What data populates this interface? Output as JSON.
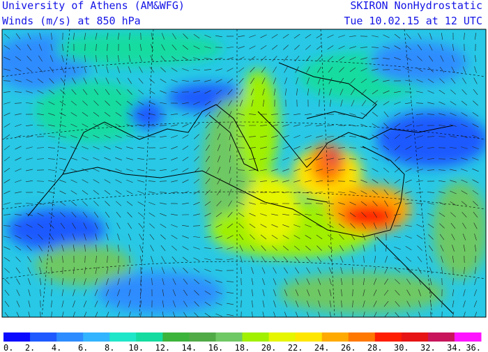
{
  "header": {
    "left": [
      "University of Athens (AM&WFG)",
      "Winds (m/s) at  850 hPa"
    ],
    "right": [
      "SKIRON NonHydrostatic",
      "Tue 10.02.15 at 12 UTC"
    ]
  },
  "colorbar": {
    "colors": [
      "#0a0aff",
      "#1e5aff",
      "#2d8cff",
      "#32b4ff",
      "#1ee6c8",
      "#14dca0",
      "#3cb43c",
      "#50aa46",
      "#6ec864",
      "#a0f000",
      "#e6f500",
      "#ffe600",
      "#ffaa00",
      "#ff7800",
      "#ff1e00",
      "#e61414",
      "#c8145a",
      "#ff14ff"
    ],
    "labels": [
      "0.",
      "2.",
      "4.",
      "6.",
      "8.",
      "10.",
      "12.",
      "14.",
      "16.",
      "18.",
      "20.",
      "22.",
      "24.",
      "26.",
      "28.",
      "30.",
      "32.",
      "34.",
      "36."
    ]
  }
}
